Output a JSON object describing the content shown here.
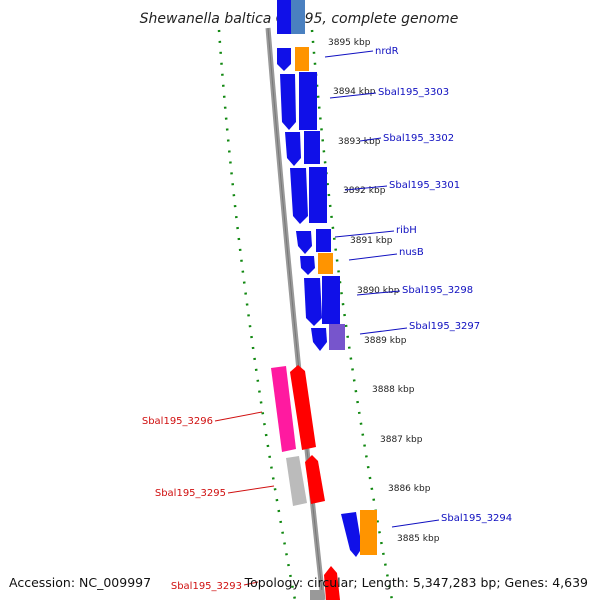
{
  "title": "Shewanella baltica OS195, complete genome",
  "accession": "Accession: NC_009997",
  "topology": "Topology: circular; Length: 5,347,283 bp; Genes: 4,639",
  "colors": {
    "forward_gene": "#1010e8",
    "forward_gene_dark": "#0000b0",
    "rna_orange": "#ff9400",
    "reverse_red": "#ff0000",
    "reverse_pink": "#ff1aa0",
    "pseudo_grey": "#bbbbbb",
    "tick_green": "#118811",
    "label_blue": "#1010c0",
    "label_red": "#d01010",
    "backbone": "#888888"
  },
  "ticks": [
    {
      "label": "3895 kbp"
    },
    {
      "label": "3894 kbp"
    },
    {
      "label": "3893 kbp"
    },
    {
      "label": "3892 kbp"
    },
    {
      "label": "3891 kbp"
    },
    {
      "label": "3890 kbp"
    },
    {
      "label": "3889 kbp"
    },
    {
      "label": "3888 kbp"
    },
    {
      "label": "3887 kbp"
    },
    {
      "label": "3886 kbp"
    },
    {
      "label": "3885 kbp"
    }
  ],
  "gene_labels_forward": [
    {
      "label": "nrdR"
    },
    {
      "label": "Sbal195_3303"
    },
    {
      "label": "Sbal195_3302"
    },
    {
      "label": "Sbal195_3301"
    },
    {
      "label": "ribH"
    },
    {
      "label": "nusB"
    },
    {
      "label": "Sbal195_3298"
    },
    {
      "label": "Sbal195_3297"
    },
    {
      "label": "Sbal195_3294"
    }
  ],
  "gene_labels_reverse": [
    {
      "label": "Sbal195_3296"
    },
    {
      "label": "Sbal195_3295"
    },
    {
      "label": "Sbal195_3293"
    }
  ]
}
